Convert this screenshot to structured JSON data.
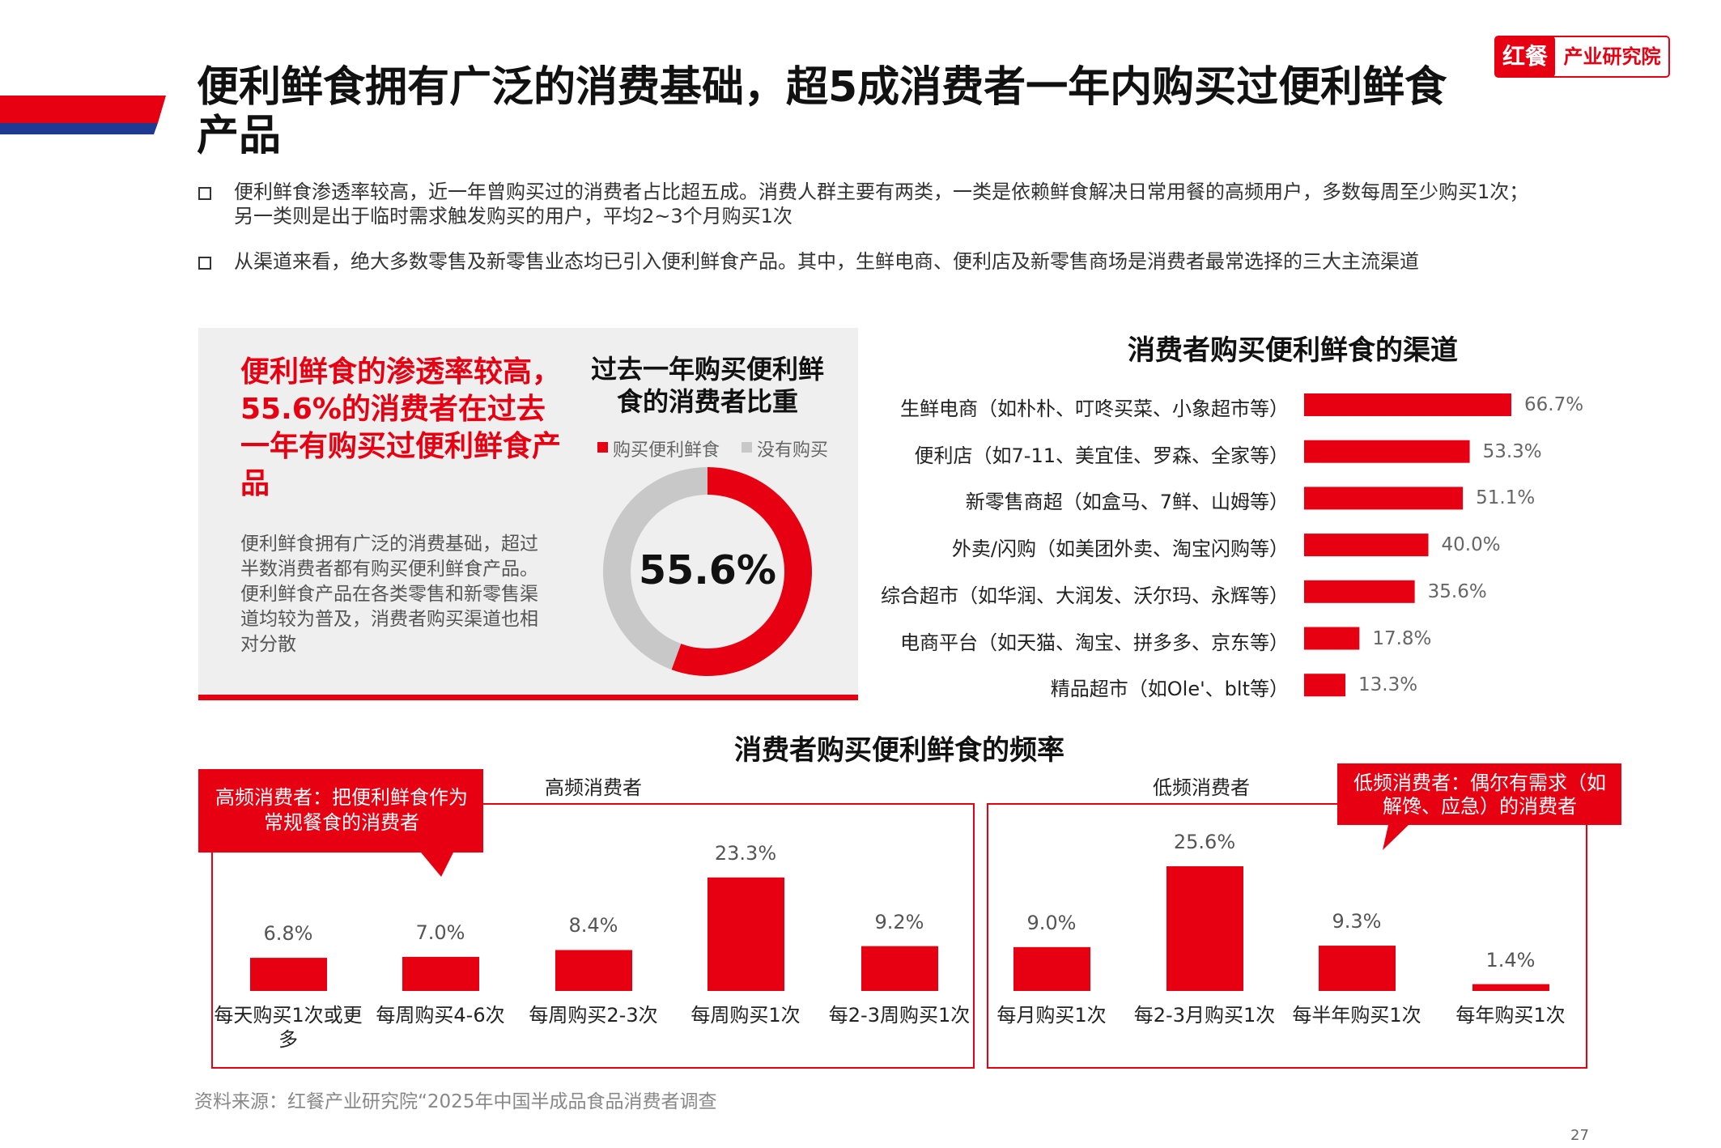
{
  "header": {
    "title": "便利鲜食拥有广泛的消费基础，超5成消费者一年内购买过便利鲜食产品",
    "logo_mark": "红餐",
    "logo_text": "产业研究院"
  },
  "bullets": [
    "便利鲜食渗透率较高，近一年曾购买过的消费者占比超五成。消费人群主要有两类，一类是依赖鲜食解决日常用餐的高频用户，多数每周至少购买1次；另一类则是出于临时需求触发购买的用户，平均2~3个月购买1次",
    "从渠道来看，绝大多数零售及新零售业态均已引入便利鲜食产品。其中，生鲜电商、便利店及新零售商场是消费者最常选择的三大主流渠道"
  ],
  "highlight": {
    "headline": "便利鲜食的渗透率较高，55.6%的消费者在过去一年有购买过便利鲜食产品",
    "body": "便利鲜食拥有广泛的消费基础，超过半数消费者都有购买便利鲜食产品。便利鲜食产品在各类零售和新零售渠道均较为普及，消费者购买渠道也相对分散"
  },
  "chart_data": [
    {
      "type": "donut",
      "title": "过去一年购买便利鲜食的消费者比重",
      "categories": [
        "购买便利鲜食",
        "没有购买"
      ],
      "values": [
        55.6,
        44.4
      ],
      "colors": [
        "#e60012",
        "#c8c8c8"
      ],
      "center_label": "55.6%"
    },
    {
      "type": "barh",
      "title": "消费者购买便利鲜食的渠道",
      "color": "#e60012",
      "categories": [
        "生鲜电商（如朴朴、叮咚买菜、小象超市等）",
        "便利店（如7-11、美宜佳、罗森、全家等）",
        "新零售商超（如盒马、7鲜、山姆等）",
        "外卖/闪购（如美团外卖、淘宝闪购等）",
        "综合超市（如华润、大润发、沃尔玛、永辉等）",
        "电商平台（如天猫、淘宝、拼多多、京东等）",
        "精品超市（如Ole'、blt等）"
      ],
      "values": [
        66.7,
        53.3,
        51.1,
        40.0,
        35.6,
        17.8,
        13.3
      ],
      "value_labels": [
        "66.7%",
        "53.3%",
        "51.1%",
        "40.0%",
        "35.6%",
        "17.8%",
        "13.3%"
      ]
    },
    {
      "type": "bar",
      "title": "消费者购买便利鲜食的频率",
      "subtitle": "高频消费者",
      "annotation": "高频消费者：把便利鲜食作为常规餐食的消费者",
      "color": "#e60012",
      "categories": [
        "每天购买1次或更多",
        "每周购买4-6次",
        "每周购买2-3次",
        "每周购买1次",
        "每2-3周购买1次"
      ],
      "values": [
        6.8,
        7.0,
        8.4,
        23.3,
        9.2
      ],
      "value_labels": [
        "6.8%",
        "7.0%",
        "8.4%",
        "23.3%",
        "9.2%"
      ]
    },
    {
      "type": "bar",
      "subtitle": "低频消费者",
      "annotation": "低频消费者：偶尔有需求（如解馋、应急）的消费者",
      "color": "#e60012",
      "categories": [
        "每月购买1次",
        "每2-3月购买1次",
        "每半年购买1次",
        "每年购买1次"
      ],
      "values": [
        9.0,
        25.6,
        9.3,
        1.4
      ],
      "value_labels": [
        "9.0%",
        "25.6%",
        "9.3%",
        "1.4%"
      ]
    }
  ],
  "source": "资料来源：红餐产业研究院“2025年中国半成品食品消费者调查",
  "page_number": "27"
}
